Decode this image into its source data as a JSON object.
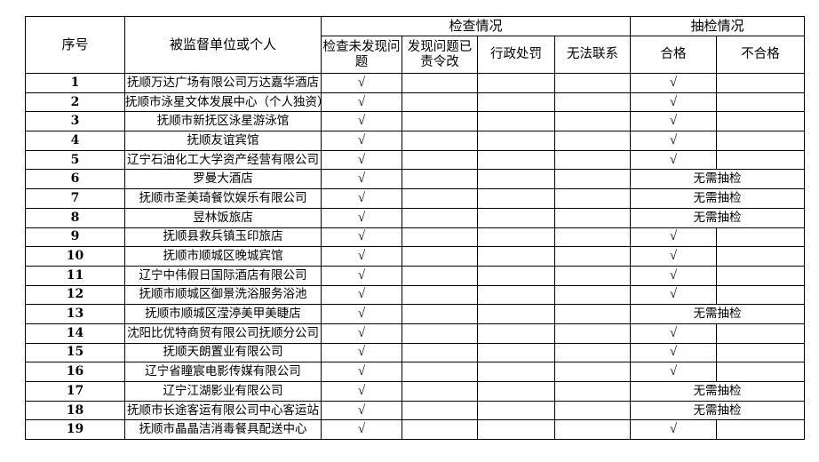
{
  "headers": {
    "seq": "序号",
    "unit": "被监督单位或个人",
    "inspection_group": "检查情况",
    "spot_group": "抽检情况",
    "inspection_cols": [
      "检查未发现问题",
      "发现问题已责令改",
      "行政处罚",
      "无法联系"
    ],
    "spot_cols": [
      "合格",
      "不合格"
    ]
  },
  "check_mark": "√",
  "no_need_label": "无需抽检",
  "rows": [
    {
      "seq": "1",
      "name": "抚顺万达广场有限公司万达嘉华酒店",
      "spot": "合格"
    },
    {
      "seq": "2",
      "name": "抚顺市泳星文体发展中心（个人独资）",
      "spot": "合格"
    },
    {
      "seq": "3",
      "name": "抚顺市新抚区泳星游泳馆",
      "spot": "合格"
    },
    {
      "seq": "4",
      "name": "抚顺友谊宾馆",
      "spot": "合格"
    },
    {
      "seq": "5",
      "name": "辽宁石油化工大学资产经营有限公司",
      "spot": "合格"
    },
    {
      "seq": "6",
      "name": "罗曼大酒店",
      "spot": "无需抽检"
    },
    {
      "seq": "7",
      "name": "抚顺市圣美琦餐饮娱乐有限公司",
      "spot": "无需抽检"
    },
    {
      "seq": "8",
      "name": "昱林饭旅店",
      "spot": "无需抽检"
    },
    {
      "seq": "9",
      "name": "抚顺县救兵镇玉印旅店",
      "spot": "合格"
    },
    {
      "seq": "10",
      "name": "抚顺市顺城区晚城宾馆",
      "spot": "合格"
    },
    {
      "seq": "11",
      "name": "辽宁中伟假日国际酒店有限公司",
      "spot": "合格"
    },
    {
      "seq": "12",
      "name": "抚顺市顺城区御景洗浴服务浴池",
      "spot": "合格"
    },
    {
      "seq": "13",
      "name": "抚顺市顺城区滢渟美甲美睫店",
      "spot": "无需抽检"
    },
    {
      "seq": "14",
      "name": "沈阳比优特商贸有限公司抚顺分公司",
      "spot": "合格"
    },
    {
      "seq": "15",
      "name": "抚顺天朗置业有限公司",
      "spot": "合格"
    },
    {
      "seq": "16",
      "name": "辽宁省瞳宸电影传媒有限公司",
      "spot": "合格"
    },
    {
      "seq": "17",
      "name": "辽宁江湖影业有限公司",
      "spot": "无需抽检"
    },
    {
      "seq": "18",
      "name": "抚顺市长途客运有限公司中心客运站",
      "spot": "无需抽检"
    },
    {
      "seq": "19",
      "name": "抚顺市晶晶洁消毒餐具配送中心",
      "spot": "合格"
    }
  ]
}
